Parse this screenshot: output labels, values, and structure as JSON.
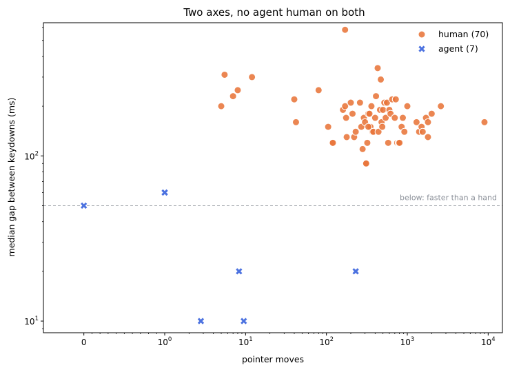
{
  "chart_data": {
    "type": "scatter",
    "title": "Two axes, no agent human on both",
    "xlabel": "pointer moves",
    "ylabel": "median gap between keydowns (ms)",
    "x_scale": "symlog",
    "y_scale": "log",
    "xlim": [
      -0.5,
      15000
    ],
    "ylim": [
      8.5,
      640
    ],
    "x_ticks": [
      {
        "value": 0,
        "label": "0"
      },
      {
        "value": 1,
        "label": "10",
        "exp": "0"
      },
      {
        "value": 10,
        "label": "10",
        "exp": "1"
      },
      {
        "value": 100,
        "label": "10",
        "exp": "2"
      },
      {
        "value": 1000,
        "label": "10",
        "exp": "3"
      },
      {
        "value": 10000,
        "label": "10",
        "exp": "4"
      }
    ],
    "y_ticks": [
      {
        "value": 10,
        "label": "10",
        "exp": "1"
      },
      {
        "value": 100,
        "label": "10",
        "exp": "2"
      }
    ],
    "grid": false,
    "legend_position": "top-right",
    "threshold": {
      "y": 50,
      "label": "below: faster than a hand"
    },
    "series": [
      {
        "name": "human (70)",
        "marker": "circle",
        "color": "#e8753a",
        "points": [
          [
            5,
            200
          ],
          [
            5.5,
            310
          ],
          [
            7,
            230
          ],
          [
            8,
            250
          ],
          [
            12,
            300
          ],
          [
            40,
            220
          ],
          [
            42,
            160
          ],
          [
            80,
            250
          ],
          [
            105,
            150
          ],
          [
            118,
            120
          ],
          [
            120,
            120
          ],
          [
            160,
            190
          ],
          [
            170,
            200
          ],
          [
            175,
            170
          ],
          [
            178,
            130
          ],
          [
            170,
            580
          ],
          [
            200,
            210
          ],
          [
            210,
            180
          ],
          [
            220,
            130
          ],
          [
            230,
            140
          ],
          [
            260,
            210
          ],
          [
            270,
            150
          ],
          [
            280,
            110
          ],
          [
            290,
            170
          ],
          [
            300,
            160
          ],
          [
            305,
            90
          ],
          [
            310,
            90
          ],
          [
            320,
            120
          ],
          [
            330,
            180
          ],
          [
            340,
            180
          ],
          [
            350,
            150
          ],
          [
            360,
            200
          ],
          [
            370,
            140
          ],
          [
            380,
            140
          ],
          [
            400,
            170
          ],
          [
            410,
            230
          ],
          [
            430,
            340
          ],
          [
            440,
            140
          ],
          [
            460,
            190
          ],
          [
            470,
            290
          ],
          [
            480,
            160
          ],
          [
            490,
            150
          ],
          [
            500,
            190
          ],
          [
            520,
            210
          ],
          [
            540,
            170
          ],
          [
            560,
            210
          ],
          [
            580,
            120
          ],
          [
            600,
            190
          ],
          [
            620,
            180
          ],
          [
            650,
            220
          ],
          [
            700,
            170
          ],
          [
            720,
            220
          ],
          [
            750,
            120
          ],
          [
            780,
            120
          ],
          [
            800,
            120
          ],
          [
            850,
            150
          ],
          [
            880,
            170
          ],
          [
            920,
            140
          ],
          [
            1000,
            200
          ],
          [
            1300,
            160
          ],
          [
            1400,
            140
          ],
          [
            1500,
            150
          ],
          [
            1550,
            140
          ],
          [
            1700,
            170
          ],
          [
            1800,
            160
          ],
          [
            1800,
            130
          ],
          [
            2000,
            180
          ],
          [
            2600,
            200
          ],
          [
            9000,
            160
          ],
          [
            330,
            150
          ]
        ]
      },
      {
        "name": "agent (7)",
        "marker": "x",
        "color": "#4c72e0",
        "points": [
          [
            0,
            50
          ],
          [
            1,
            60
          ],
          [
            2.8,
            10
          ],
          [
            8.3,
            20
          ],
          [
            9.5,
            10
          ],
          [
            230,
            20
          ],
          [
            1,
            60
          ]
        ]
      }
    ]
  }
}
